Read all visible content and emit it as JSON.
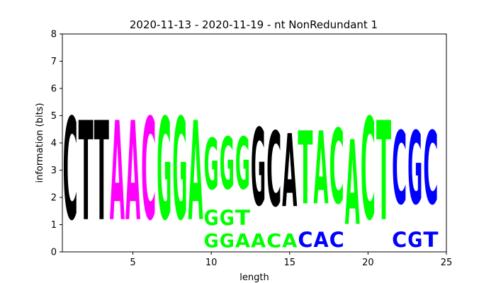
{
  "chart_data": {
    "type": "sequence-logo",
    "title": "2020-11-13 - 2020-11-19 - nt NonRedundant 1",
    "xlabel": "length",
    "ylabel": "information (bits)",
    "xlim": [
      0.5,
      25
    ],
    "ylim": [
      0,
      8
    ],
    "xticks": [
      5,
      10,
      15,
      20,
      25
    ],
    "yticks": [
      0,
      1,
      2,
      3,
      4,
      5,
      6,
      7,
      8
    ],
    "colors": {
      "A": "#ff00ff",
      "C": "#000000",
      "G": "#00ff00",
      "T": "#000000"
    },
    "positions": [
      {
        "pos": 1,
        "stack": [
          {
            "letter": "C",
            "bits": 6.0,
            "color": "#000000"
          }
        ]
      },
      {
        "pos": 2,
        "stack": [
          {
            "letter": "T",
            "bits": 5.85,
            "color": "#000000"
          }
        ]
      },
      {
        "pos": 3,
        "stack": [
          {
            "letter": "T",
            "bits": 5.85,
            "color": "#000000"
          }
        ]
      },
      {
        "pos": 4,
        "stack": [
          {
            "letter": "A",
            "bits": 5.85,
            "color": "#ff00ff"
          }
        ]
      },
      {
        "pos": 5,
        "stack": [
          {
            "letter": "A",
            "bits": 5.85,
            "color": "#ff00ff"
          }
        ]
      },
      {
        "pos": 6,
        "stack": [
          {
            "letter": "C",
            "bits": 6.0,
            "color": "#ff00ff"
          }
        ]
      },
      {
        "pos": 7,
        "stack": [
          {
            "letter": "G",
            "bits": 6.0,
            "color": "#00ff00"
          }
        ]
      },
      {
        "pos": 8,
        "stack": [
          {
            "letter": "G",
            "bits": 6.0,
            "color": "#00ff00"
          }
        ]
      },
      {
        "pos": 9,
        "stack": [
          {
            "letter": "A",
            "bits": 5.85,
            "color": "#00ff00"
          }
        ]
      },
      {
        "pos": 10,
        "stack": [
          {
            "letter": "G",
            "bits": 0.8,
            "color": "#00ff00"
          },
          {
            "letter": "G",
            "bits": 0.9,
            "color": "#00ff00"
          },
          {
            "letter": "G",
            "bits": 3.0,
            "color": "#00ff00"
          }
        ]
      },
      {
        "pos": 11,
        "stack": [
          {
            "letter": "G",
            "bits": 0.8,
            "color": "#00ff00"
          },
          {
            "letter": "G",
            "bits": 0.9,
            "color": "#00ff00"
          },
          {
            "letter": "G",
            "bits": 3.05,
            "color": "#00ff00"
          }
        ]
      },
      {
        "pos": 12,
        "stack": [
          {
            "letter": "A",
            "bits": 0.8,
            "color": "#00ff00"
          },
          {
            "letter": "T",
            "bits": 0.9,
            "color": "#00ff00"
          },
          {
            "letter": "G",
            "bits": 3.05,
            "color": "#00ff00"
          }
        ]
      },
      {
        "pos": 13,
        "stack": [
          {
            "letter": "A",
            "bits": 0.8,
            "color": "#00ff00"
          },
          {
            "letter": "G",
            "bits": 4.55,
            "color": "#000000"
          }
        ]
      },
      {
        "pos": 14,
        "stack": [
          {
            "letter": "C",
            "bits": 0.8,
            "color": "#00ff00"
          },
          {
            "letter": "C",
            "bits": 4.4,
            "color": "#000000"
          }
        ]
      },
      {
        "pos": 15,
        "stack": [
          {
            "letter": "A",
            "bits": 0.8,
            "color": "#00ff00"
          },
          {
            "letter": "A",
            "bits": 4.3,
            "color": "#000000"
          }
        ]
      },
      {
        "pos": 16,
        "stack": [
          {
            "letter": "C",
            "bits": 0.9,
            "color": "#0000ff"
          },
          {
            "letter": "T",
            "bits": 4.3,
            "color": "#00ff00"
          }
        ]
      },
      {
        "pos": 17,
        "stack": [
          {
            "letter": "A",
            "bits": 0.9,
            "color": "#0000ff"
          },
          {
            "letter": "A",
            "bits": 4.3,
            "color": "#00ff00"
          }
        ]
      },
      {
        "pos": 18,
        "stack": [
          {
            "letter": "C",
            "bits": 0.9,
            "color": "#0000ff"
          },
          {
            "letter": "C",
            "bits": 4.4,
            "color": "#00ff00"
          }
        ]
      },
      {
        "pos": 19,
        "stack": [
          {
            "letter": "A",
            "bits": 5.0,
            "color": "#00ff00"
          }
        ]
      },
      {
        "pos": 20,
        "stack": [
          {
            "letter": "C",
            "bits": 6.0,
            "color": "#00ff00"
          }
        ]
      },
      {
        "pos": 21,
        "stack": [
          {
            "letter": "T",
            "bits": 5.85,
            "color": "#00ff00"
          }
        ]
      },
      {
        "pos": 22,
        "stack": [
          {
            "letter": "C",
            "bits": 0.9,
            "color": "#0000ff"
          },
          {
            "letter": "C",
            "bits": 4.3,
            "color": "#0000ff"
          }
        ]
      },
      {
        "pos": 23,
        "stack": [
          {
            "letter": "G",
            "bits": 0.9,
            "color": "#0000ff"
          },
          {
            "letter": "G",
            "bits": 4.3,
            "color": "#0000ff"
          }
        ]
      },
      {
        "pos": 24,
        "stack": [
          {
            "letter": "T",
            "bits": 0.9,
            "color": "#0000ff"
          },
          {
            "letter": "C",
            "bits": 4.3,
            "color": "#0000ff"
          }
        ]
      }
    ]
  }
}
